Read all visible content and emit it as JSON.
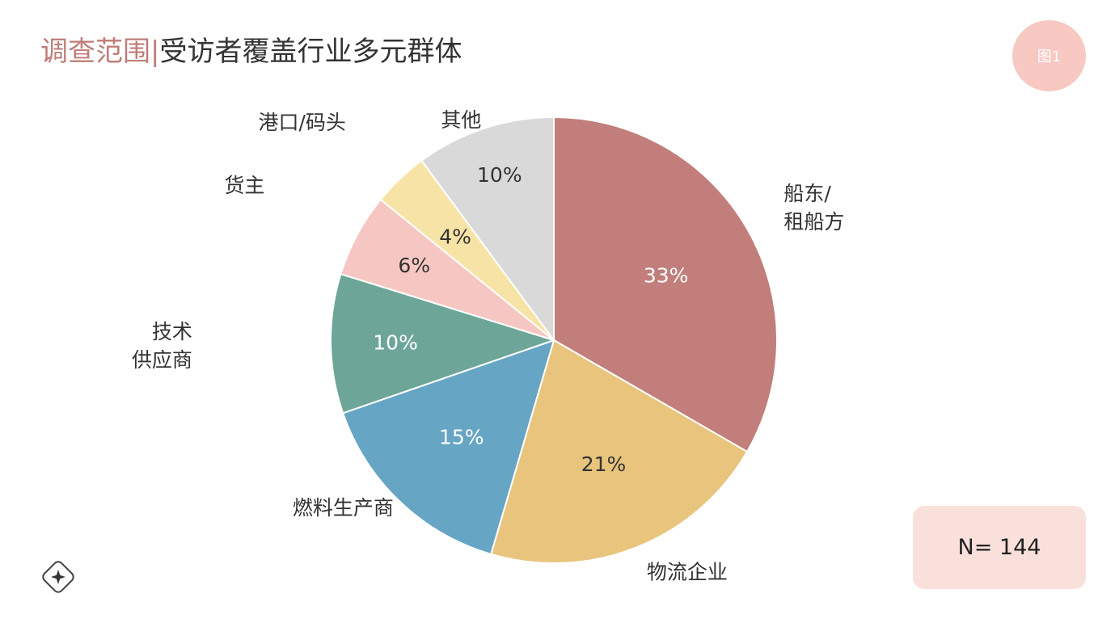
{
  "header": {
    "title_accent": "调查范围",
    "separator": "|",
    "title_rest": "受访者覆盖行业多元群体"
  },
  "badge": {
    "label": "图1"
  },
  "sample": {
    "label": "N= 144"
  },
  "icons": {
    "corner": "sparkle-icon"
  },
  "colors": {
    "accent": "#c07d79",
    "badge_bg": "#f8c8c2",
    "n_box_bg": "#fae0db"
  },
  "chart_data": {
    "type": "pie",
    "start": "12 o'clock",
    "direction": "clockwise",
    "slices": [
      {
        "label": "船东/\n租船方",
        "value": 33,
        "value_label": "33%",
        "color": "#c17e7b",
        "value_text_color": "#ffffff"
      },
      {
        "label": "物流企业",
        "value": 21,
        "value_label": "21%",
        "color": "#e8c47d",
        "value_text_color": "#333333"
      },
      {
        "label": "燃料生产商",
        "value": 15,
        "value_label": "15%",
        "color": "#67a5c4",
        "value_text_color": "#ffffff"
      },
      {
        "label": "技术\n供应商",
        "value": 10,
        "value_label": "10%",
        "color": "#6da698",
        "value_text_color": "#ffffff"
      },
      {
        "label": "货主",
        "value": 6,
        "value_label": "6%",
        "color": "#f6c7c2",
        "value_text_color": "#333333"
      },
      {
        "label": "港口/码头",
        "value": 4,
        "value_label": "4%",
        "color": "#f7e3a6",
        "value_text_color": "#333333"
      },
      {
        "label": "其他",
        "value": 10,
        "value_label": "10%",
        "color": "#d9d9d9",
        "value_text_color": "#333333"
      }
    ]
  }
}
